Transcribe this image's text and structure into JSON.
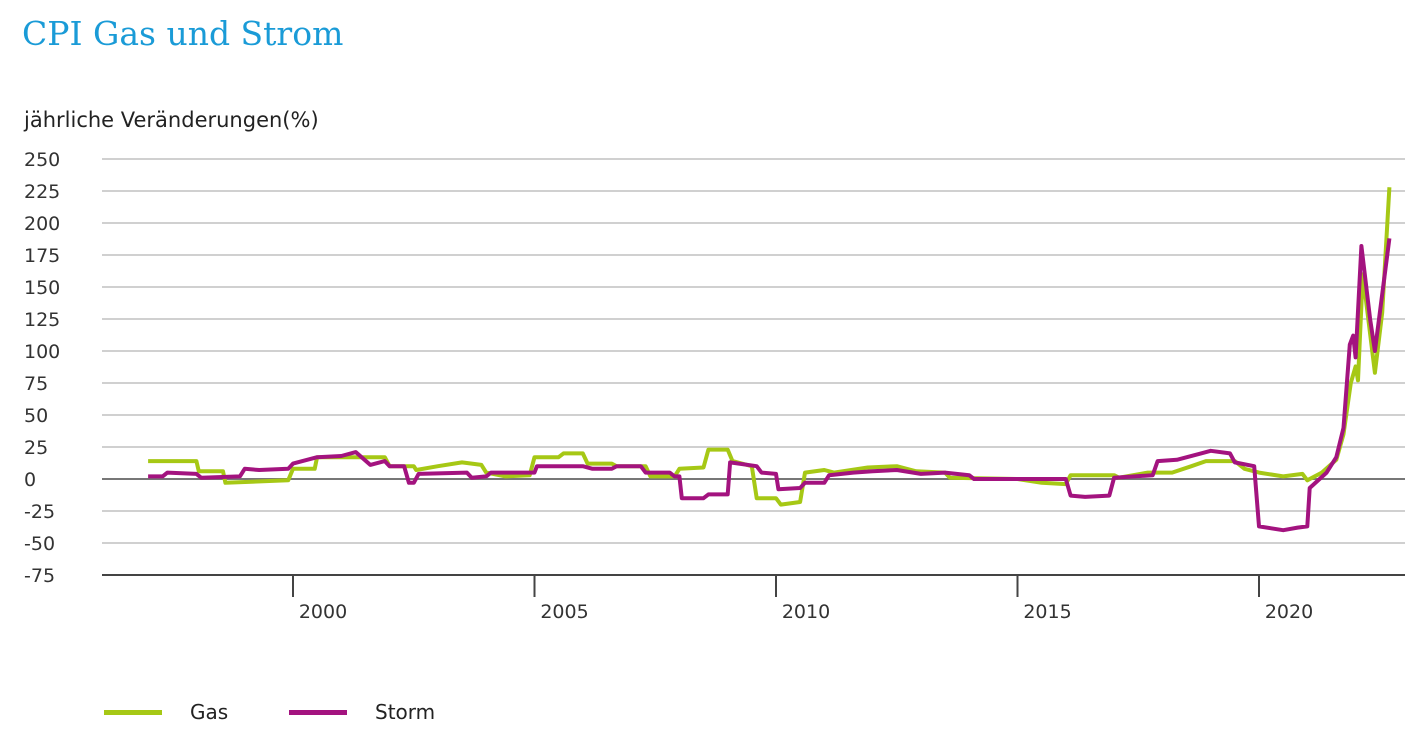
{
  "chart_data": {
    "type": "line",
    "title": "CPI Gas und Strom",
    "ylabel": "jährliche Veränderungen(%)",
    "xlabel": "",
    "ylim": [
      -75,
      250
    ],
    "xlim": [
      1996.2,
      2023.2
    ],
    "yticks": [
      250,
      225,
      200,
      175,
      150,
      125,
      100,
      75,
      50,
      25,
      0,
      -25,
      -50,
      -75
    ],
    "ytick_labels": [
      "250",
      "225",
      "200",
      "175",
      "150",
      "125",
      "100",
      "75",
      "50",
      "25",
      "0",
      "-25",
      "-50",
      "-75"
    ],
    "xticks": [
      2000,
      2005,
      2010,
      2015,
      2020
    ],
    "xtick_labels": [
      "2000",
      "2005",
      "2010",
      "2015",
      "2020"
    ],
    "grid": true,
    "legend": "bottom-left",
    "series": [
      {
        "name": "Gas",
        "color": "#a6c815",
        "points": [
          [
            1997.0,
            14
          ],
          [
            1998.0,
            14
          ],
          [
            1998.05,
            6
          ],
          [
            1998.55,
            6
          ],
          [
            1998.6,
            -3
          ],
          [
            1999.9,
            -1
          ],
          [
            2000.0,
            8
          ],
          [
            2000.45,
            8
          ],
          [
            2000.5,
            17
          ],
          [
            2001.9,
            17
          ],
          [
            2002.0,
            10
          ],
          [
            2002.5,
            10
          ],
          [
            2002.55,
            7
          ],
          [
            2003.0,
            10
          ],
          [
            2003.5,
            13
          ],
          [
            2003.9,
            11
          ],
          [
            2004.0,
            5
          ],
          [
            2004.4,
            2
          ],
          [
            2004.9,
            3
          ],
          [
            2005.0,
            17
          ],
          [
            2005.5,
            17
          ],
          [
            2005.6,
            20
          ],
          [
            2006.0,
            20
          ],
          [
            2006.1,
            12
          ],
          [
            2006.6,
            12
          ],
          [
            2006.7,
            10
          ],
          [
            2007.3,
            10
          ],
          [
            2007.4,
            2
          ],
          [
            2007.9,
            2
          ],
          [
            2008.0,
            8
          ],
          [
            2008.5,
            9
          ],
          [
            2008.6,
            23
          ],
          [
            2009.0,
            23
          ],
          [
            2009.1,
            14
          ],
          [
            2009.5,
            10
          ],
          [
            2009.6,
            -15
          ],
          [
            2010.0,
            -15
          ],
          [
            2010.1,
            -20
          ],
          [
            2010.5,
            -18
          ],
          [
            2010.6,
            5
          ],
          [
            2011.0,
            7
          ],
          [
            2011.2,
            5
          ],
          [
            2011.9,
            9
          ],
          [
            2012.5,
            10
          ],
          [
            2012.9,
            6
          ],
          [
            2013.5,
            5
          ],
          [
            2013.6,
            1
          ],
          [
            2015.0,
            0
          ],
          [
            2015.5,
            -3
          ],
          [
            2016.0,
            -4
          ],
          [
            2016.1,
            3
          ],
          [
            2017.0,
            3
          ],
          [
            2017.1,
            1
          ],
          [
            2017.7,
            5
          ],
          [
            2018.2,
            5
          ],
          [
            2018.6,
            10
          ],
          [
            2018.9,
            14
          ],
          [
            2019.5,
            14
          ],
          [
            2019.7,
            8
          ],
          [
            2020.0,
            5
          ],
          [
            2020.5,
            2
          ],
          [
            2020.9,
            4
          ],
          [
            2021.0,
            -1
          ],
          [
            2021.3,
            5
          ],
          [
            2021.6,
            15
          ],
          [
            2021.75,
            35
          ],
          [
            2021.9,
            75
          ],
          [
            2022.0,
            88
          ],
          [
            2022.05,
            77
          ],
          [
            2022.15,
            160
          ],
          [
            2022.4,
            83
          ],
          [
            2022.55,
            130
          ],
          [
            2022.7,
            228
          ]
        ]
      },
      {
        "name": "Storm",
        "color": "#a3137f",
        "points": [
          [
            1997.0,
            2
          ],
          [
            1997.3,
            2
          ],
          [
            1997.4,
            5
          ],
          [
            1998.0,
            4
          ],
          [
            1998.1,
            1
          ],
          [
            1998.9,
            2
          ],
          [
            1999.0,
            8
          ],
          [
            1999.3,
            7
          ],
          [
            1999.9,
            8
          ],
          [
            2000.0,
            12
          ],
          [
            2000.5,
            17
          ],
          [
            2001.0,
            18
          ],
          [
            2001.3,
            21
          ],
          [
            2001.6,
            11
          ],
          [
            2001.9,
            14
          ],
          [
            2002.0,
            10
          ],
          [
            2002.3,
            10
          ],
          [
            2002.4,
            -3
          ],
          [
            2002.5,
            -3
          ],
          [
            2002.6,
            4
          ],
          [
            2003.6,
            5
          ],
          [
            2003.7,
            1
          ],
          [
            2004.0,
            2
          ],
          [
            2004.1,
            5
          ],
          [
            2005.0,
            5
          ],
          [
            2005.05,
            10
          ],
          [
            2006.0,
            10
          ],
          [
            2006.2,
            8
          ],
          [
            2006.6,
            8
          ],
          [
            2006.7,
            10
          ],
          [
            2007.2,
            10
          ],
          [
            2007.3,
            5
          ],
          [
            2007.8,
            5
          ],
          [
            2007.9,
            2
          ],
          [
            2008.0,
            2
          ],
          [
            2008.05,
            -15
          ],
          [
            2008.5,
            -15
          ],
          [
            2008.6,
            -12
          ],
          [
            2009.0,
            -12
          ],
          [
            2009.05,
            13
          ],
          [
            2009.6,
            10
          ],
          [
            2009.7,
            5
          ],
          [
            2010.0,
            4
          ],
          [
            2010.05,
            -8
          ],
          [
            2010.5,
            -7
          ],
          [
            2010.6,
            -3
          ],
          [
            2011.0,
            -3
          ],
          [
            2011.1,
            3
          ],
          [
            2011.6,
            5
          ],
          [
            2012.0,
            6
          ],
          [
            2012.5,
            7
          ],
          [
            2013.0,
            4
          ],
          [
            2013.5,
            5
          ],
          [
            2014.0,
            3
          ],
          [
            2014.1,
            0
          ],
          [
            2016.0,
            0
          ],
          [
            2016.1,
            -13
          ],
          [
            2016.4,
            -14
          ],
          [
            2016.9,
            -13
          ],
          [
            2017.0,
            1
          ],
          [
            2017.8,
            3
          ],
          [
            2017.9,
            14
          ],
          [
            2018.3,
            15
          ],
          [
            2018.8,
            20
          ],
          [
            2019.0,
            22
          ],
          [
            2019.4,
            20
          ],
          [
            2019.5,
            13
          ],
          [
            2019.9,
            10
          ],
          [
            2020.0,
            -37
          ],
          [
            2020.5,
            -40
          ],
          [
            2020.8,
            -38
          ],
          [
            2021.0,
            -37
          ],
          [
            2021.05,
            -7
          ],
          [
            2021.4,
            5
          ],
          [
            2021.6,
            17
          ],
          [
            2021.75,
            40
          ],
          [
            2021.88,
            105
          ],
          [
            2021.95,
            112
          ],
          [
            2022.0,
            95
          ],
          [
            2022.12,
            182
          ],
          [
            2022.3,
            125
          ],
          [
            2022.4,
            100
          ],
          [
            2022.7,
            188
          ]
        ]
      }
    ]
  }
}
